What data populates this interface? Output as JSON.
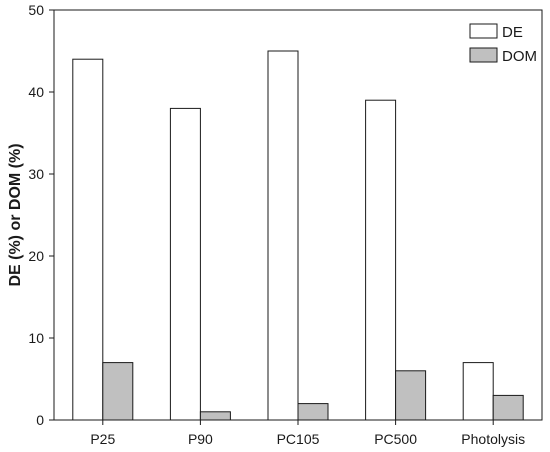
{
  "chart_data": {
    "type": "bar",
    "categories": [
      "P25",
      "P90",
      "PC105",
      "PC500",
      "Photolysis"
    ],
    "series": [
      {
        "name": "DE",
        "values": [
          44,
          38,
          45,
          39,
          7
        ],
        "color": "#ffffff"
      },
      {
        "name": "DOM",
        "values": [
          7,
          1,
          2,
          6,
          3
        ],
        "color": "#c0c0c0"
      }
    ],
    "xlabel": "",
    "ylabel": "DE (%) or DOM (%)",
    "ylim": [
      0,
      50
    ],
    "yticks": [
      0,
      10,
      20,
      30,
      40,
      50
    ],
    "grid": false,
    "legend_position": "top-right"
  }
}
